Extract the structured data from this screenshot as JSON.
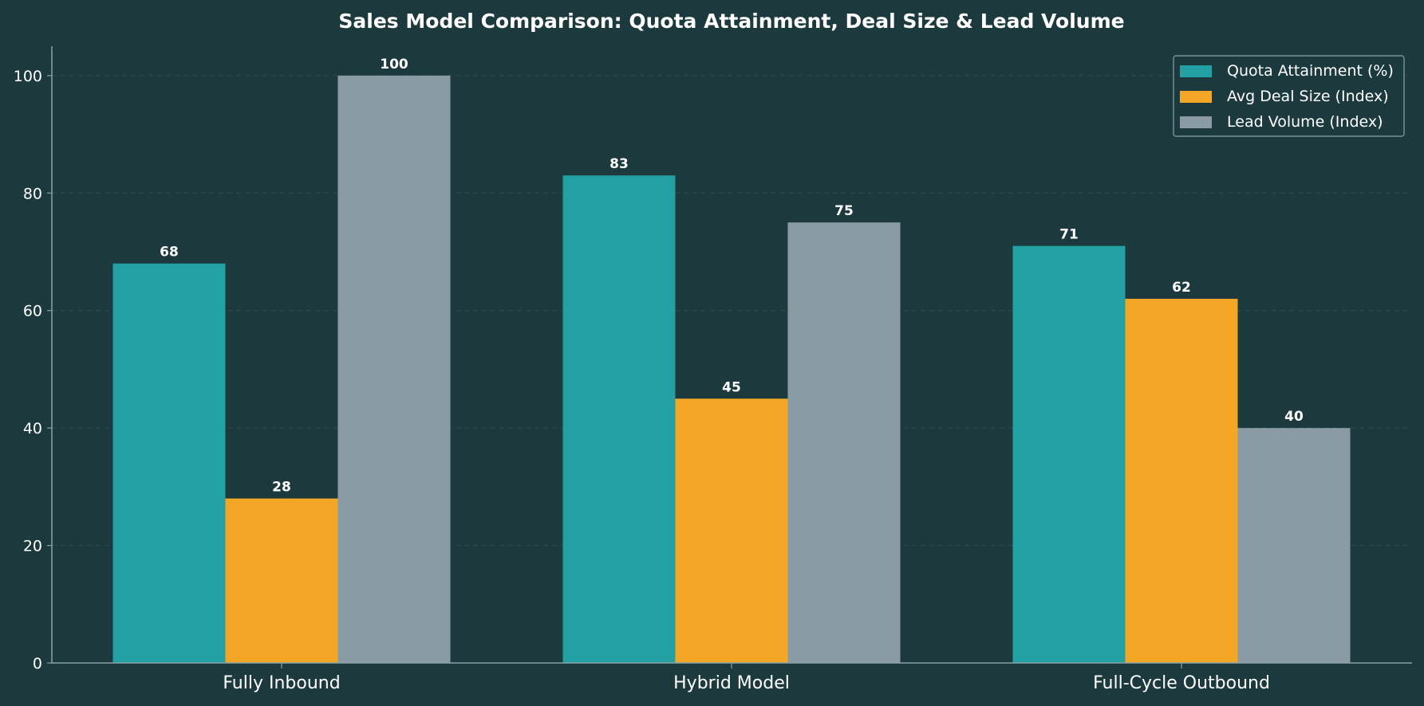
{
  "chart_data": {
    "type": "bar",
    "title": "Sales Model Comparison: Quota Attainment, Deal Size & Lead Volume",
    "xlabel": "",
    "ylabel": "",
    "categories": [
      "Fully Inbound",
      "Hybrid Model",
      "Full-Cycle Outbound"
    ],
    "series": [
      {
        "name": "Quota Attainment (%)",
        "values": [
          68,
          83,
          71
        ],
        "color": "#22a0a3"
      },
      {
        "name": "Avg Deal Size (Index)",
        "values": [
          28,
          45,
          62
        ],
        "color": "#f4a626"
      },
      {
        "name": "Lead Volume (Index)",
        "values": [
          100,
          75,
          40
        ],
        "color": "#8a9ba6"
      }
    ],
    "ylim": [
      0,
      105
    ],
    "yticks": [
      0,
      20,
      40,
      60,
      80,
      100
    ],
    "grid": true,
    "legend_position": "top-right"
  },
  "colors": {
    "background": "#1c3a3e",
    "text": "#ffffff",
    "axis": "#8aa3a8",
    "grid": "#2b4e52"
  }
}
